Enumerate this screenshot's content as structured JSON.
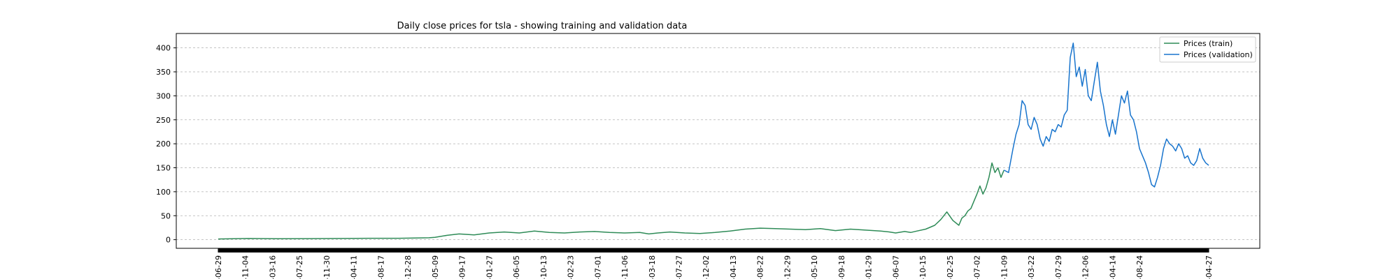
{
  "chart_data": {
    "type": "line",
    "title": "Daily close prices for tsla - showing training and validation data",
    "xlabel": "",
    "ylabel": "",
    "ylim": [
      -18,
      430
    ],
    "yticks": [
      0,
      50,
      100,
      150,
      200,
      250,
      300,
      350,
      400
    ],
    "grid": "y-dashed",
    "legend_position": "top-right",
    "colors": {
      "train": "#2e8b57",
      "validation": "#1874cd"
    },
    "x_tick_labels": [
      "-06-29",
      "-11-04",
      "-03-16",
      "-07-25",
      "-11-30",
      "-04-11",
      "-08-17",
      "-12-28",
      "-05-09",
      "-09-17",
      "-01-27",
      "-06-05",
      "-10-13",
      "-02-23",
      "-07-01",
      "-11-06",
      "-03-18",
      "-07-27",
      "-12-02",
      "-04-13",
      "-08-22",
      "-12-29",
      "-05-10",
      "-09-18",
      "-01-29",
      "-06-07",
      "-10-15",
      "-02-25",
      "-07-02",
      "-11-09",
      "-03-22",
      "-07-29",
      "-12-06",
      "-04-14",
      "-08-24",
      "-04-27"
    ],
    "x_tick_positions": [
      0,
      90,
      180,
      270,
      360,
      450,
      540,
      630,
      720,
      810,
      900,
      990,
      1080,
      1170,
      1260,
      1350,
      1440,
      1530,
      1620,
      1710,
      1800,
      1890,
      1980,
      2070,
      2160,
      2250,
      2340,
      2430,
      2520,
      2610,
      2700,
      2790,
      2880,
      2970,
      3060,
      3290
    ],
    "x_range": [
      0,
      3290
    ],
    "series": [
      {
        "name": "Prices (train)",
        "key": "train",
        "x": [
          0,
          100,
          200,
          300,
          400,
          500,
          600,
          700,
          720,
          760,
          800,
          850,
          900,
          950,
          1000,
          1050,
          1100,
          1150,
          1200,
          1250,
          1300,
          1350,
          1400,
          1430,
          1460,
          1500,
          1550,
          1600,
          1650,
          1700,
          1750,
          1800,
          1850,
          1900,
          1950,
          2000,
          2050,
          2100,
          2150,
          2200,
          2230,
          2250,
          2280,
          2300,
          2320,
          2350,
          2380,
          2400,
          2420,
          2440,
          2460,
          2470,
          2480,
          2490,
          2500,
          2510,
          2520,
          2530,
          2540,
          2550,
          2560,
          2570,
          2580,
          2590,
          2600,
          2610
        ],
        "values": [
          1.5,
          2.5,
          2,
          2.2,
          2.5,
          3,
          3,
          4,
          5,
          9,
          12,
          10,
          14,
          16,
          14,
          18,
          15,
          14,
          16,
          17,
          15,
          14,
          15,
          12,
          14,
          16,
          14,
          13,
          15,
          18,
          22,
          24,
          23,
          22,
          21,
          23,
          19,
          22,
          20,
          18,
          16,
          14,
          17,
          15,
          18,
          22,
          30,
          42,
          58,
          40,
          30,
          45,
          50,
          60,
          65,
          80,
          95,
          112,
          95,
          108,
          130,
          160,
          140,
          150,
          130,
          145
        ]
      },
      {
        "name": "Prices (validation)",
        "key": "validation",
        "x": [
          2610,
          2625,
          2640,
          2650,
          2660,
          2670,
          2680,
          2690,
          2700,
          2710,
          2720,
          2730,
          2740,
          2750,
          2760,
          2770,
          2780,
          2790,
          2800,
          2810,
          2820,
          2830,
          2840,
          2850,
          2860,
          2870,
          2880,
          2890,
          2900,
          2910,
          2920,
          2930,
          2940,
          2950,
          2960,
          2970,
          2980,
          2990,
          3000,
          3010,
          3020,
          3030,
          3040,
          3050,
          3060,
          3070,
          3080,
          3090,
          3100,
          3110,
          3120,
          3130,
          3140,
          3150,
          3160,
          3170,
          3180,
          3190,
          3200,
          3210,
          3220,
          3230,
          3240,
          3250,
          3260,
          3270,
          3280,
          3290
        ],
        "values": [
          145,
          140,
          190,
          220,
          240,
          290,
          280,
          240,
          230,
          255,
          240,
          210,
          195,
          215,
          205,
          230,
          225,
          240,
          235,
          260,
          270,
          380,
          410,
          340,
          360,
          320,
          355,
          300,
          290,
          330,
          370,
          310,
          280,
          240,
          215,
          250,
          220,
          260,
          300,
          285,
          310,
          260,
          250,
          225,
          190,
          175,
          160,
          140,
          115,
          110,
          130,
          155,
          190,
          210,
          200,
          195,
          185,
          200,
          190,
          170,
          175,
          160,
          155,
          165,
          190,
          170,
          160,
          155
        ]
      }
    ]
  }
}
